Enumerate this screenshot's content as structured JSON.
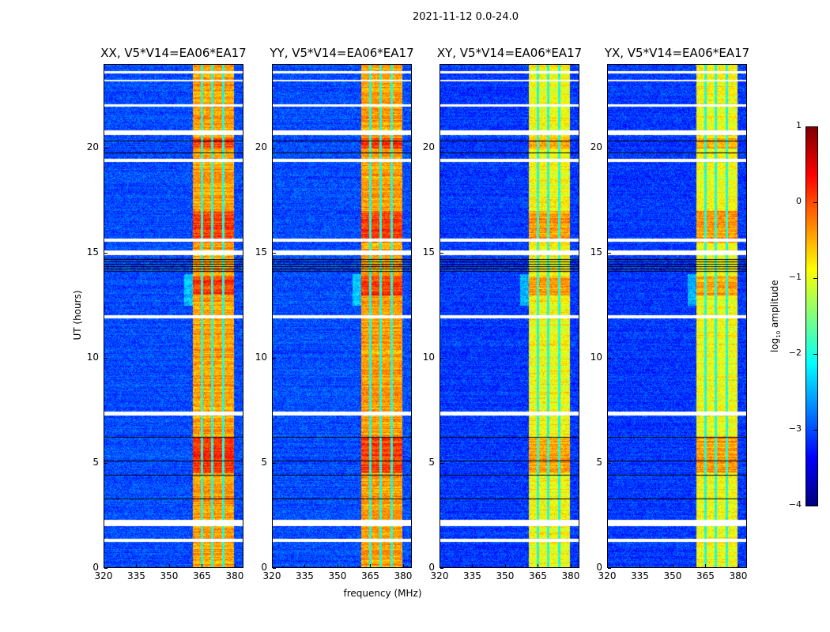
{
  "chart_data": {
    "type": "heatmap",
    "suptitle": "2021-11-12 0.0-24.0",
    "xlabel": "frequency (MHz)",
    "ylabel": "UT (hours)",
    "xlim": [
      320,
      384
    ],
    "ylim": [
      0,
      24
    ],
    "xticks": [
      "320",
      "335",
      "350",
      "365",
      "380"
    ],
    "xtick_values": [
      320,
      335,
      350,
      365,
      380
    ],
    "yticks": [
      "0",
      "5",
      "10",
      "15",
      "20"
    ],
    "ytick_values": [
      0,
      5,
      10,
      15,
      20
    ],
    "panels": [
      {
        "title": "XX, V5*V14=EA06*EA17",
        "band_level": -0.4,
        "background": -3.0
      },
      {
        "title": "YY, V5*V14=EA06*EA17",
        "band_level": -0.4,
        "background": -3.0
      },
      {
        "title": "XY, V5*V14=EA06*EA17",
        "band_level": -0.9,
        "background": -3.1
      },
      {
        "title": "YX, V5*V14=EA06*EA17",
        "band_level": -0.9,
        "background": -3.1
      }
    ],
    "rfi_band_mhz": [
      361,
      380
    ],
    "band_gaps_mhz": [
      365,
      370,
      375
    ],
    "strong_rfi_hours": [
      [
        13.0,
        13.9
      ],
      [
        20.0,
        20.5
      ],
      [
        4.5,
        6.2
      ],
      [
        15.5,
        17.0
      ]
    ],
    "flagged_hours": [
      [
        1.95,
        2.25
      ],
      [
        1.2,
        1.35
      ],
      [
        7.25,
        7.45
      ],
      [
        11.9,
        12.05
      ],
      [
        14.9,
        15.15
      ],
      [
        15.55,
        15.7
      ],
      [
        19.35,
        19.5
      ],
      [
        20.65,
        20.85
      ],
      [
        22.0,
        22.1
      ],
      [
        23.2,
        23.3
      ],
      [
        23.6,
        23.7
      ]
    ],
    "blank_hours": [
      [
        14.1,
        14.8
      ],
      [
        3.2,
        3.3
      ],
      [
        4.3,
        4.4
      ],
      [
        5.0,
        5.1
      ],
      [
        20.3,
        20.4
      ],
      [
        19.7,
        19.8
      ],
      [
        6.15,
        6.25
      ]
    ],
    "colorbar": {
      "label_base": "log",
      "label_sub": "10",
      "label_rest": " amplitude",
      "range": [
        -4,
        1
      ],
      "ticks": [
        "1",
        "0",
        "−1",
        "−2",
        "−3",
        "−4"
      ],
      "tick_values": [
        1,
        0,
        -1,
        -2,
        -3,
        -4
      ],
      "colormap": "jet"
    }
  }
}
